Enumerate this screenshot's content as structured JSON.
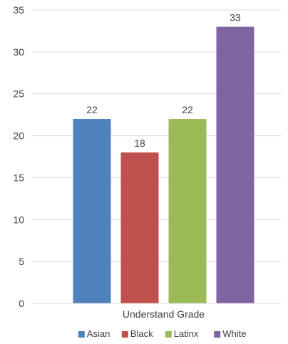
{
  "chart_data": {
    "type": "bar",
    "categories": [
      "Understand Grade"
    ],
    "series": [
      {
        "name": "Asian",
        "values": [
          22
        ],
        "color": "#4f81bd"
      },
      {
        "name": "Black",
        "values": [
          18
        ],
        "color": "#c0504d"
      },
      {
        "name": "Latinx",
        "values": [
          22
        ],
        "color": "#9bbb59"
      },
      {
        "name": "White",
        "values": [
          33
        ],
        "color": "#8064a2"
      }
    ],
    "ylim": [
      0,
      35
    ],
    "yticks": [
      0,
      5,
      10,
      15,
      20,
      25,
      30,
      35
    ],
    "grid": true,
    "legend_position": "bottom",
    "data_labels": true
  }
}
